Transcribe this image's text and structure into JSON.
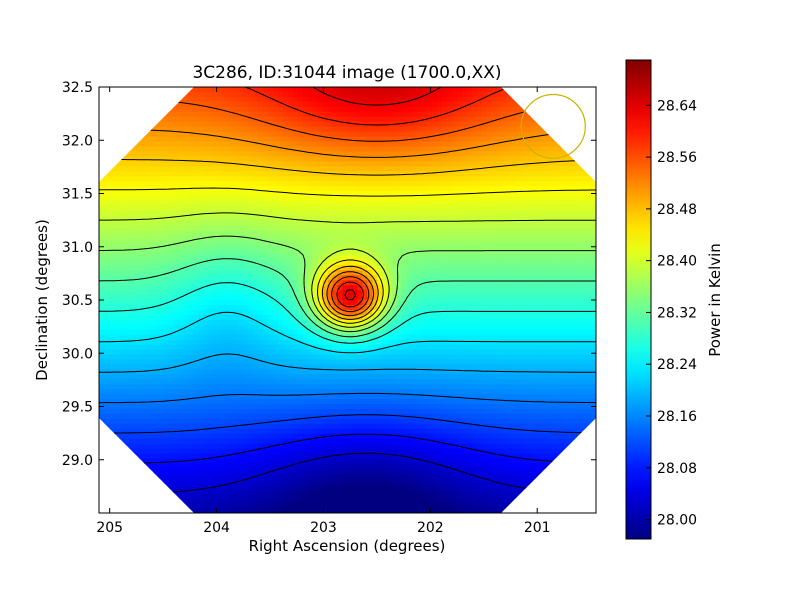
{
  "chart_data": {
    "type": "heatmap",
    "title": "3C286, ID:31044 image (1700.0,XX)",
    "xlabel": "Right Ascension (degrees)",
    "ylabel": "Declination (degrees)",
    "xlim": [
      205.1,
      200.45
    ],
    "ylim": [
      28.5,
      32.5
    ],
    "x_ticks": [
      205,
      204,
      203,
      202,
      201
    ],
    "x_tick_labels": [
      "205",
      "204",
      "203",
      "202",
      "201"
    ],
    "y_ticks": [
      29.0,
      29.5,
      30.0,
      30.5,
      31.0,
      31.5,
      32.0,
      32.5
    ],
    "y_tick_labels": [
      "29.0",
      "29.5",
      "30.0",
      "30.5",
      "31.0",
      "31.5",
      "32.0",
      "32.5"
    ],
    "colorbar": {
      "label": "Power in Kelvin",
      "range": [
        27.97,
        28.71
      ],
      "ticks": [
        28.0,
        28.08,
        28.16,
        28.24,
        28.32,
        28.4,
        28.48,
        28.56,
        28.64
      ],
      "tick_labels": [
        "28.00",
        "28.08",
        "28.16",
        "28.24",
        "28.32",
        "28.40",
        "28.48",
        "28.56",
        "28.64"
      ],
      "colormap": "jet"
    },
    "peak": {
      "ra": 202.75,
      "dec": 30.53,
      "value": 28.7
    },
    "field_shape": "octagon",
    "contour_color": "#000000",
    "beam_marker": {
      "ra": 200.85,
      "dec": 32.13,
      "radius_deg": 0.3,
      "color": "#c8b400"
    },
    "grid": false,
    "legend": "none"
  }
}
